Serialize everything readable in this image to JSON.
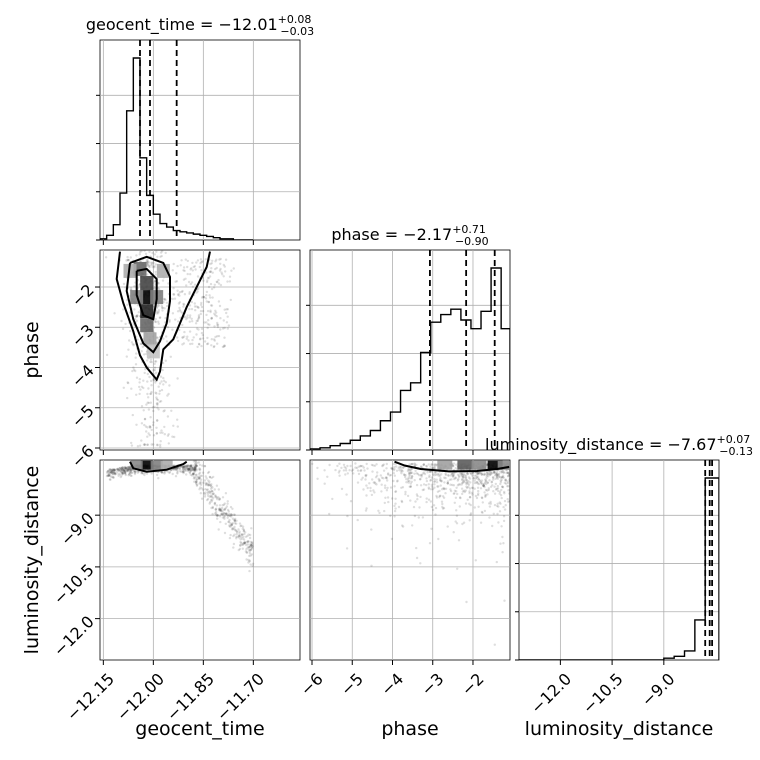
{
  "chart_data": {
    "type": "corner",
    "parameters": [
      "geocent_time",
      "phase",
      "luminosity_distance"
    ],
    "axis_labels": {
      "geocent_time": "geocent_time",
      "phase": "phase",
      "luminosity_distance": "luminosity_distance"
    },
    "ranges": {
      "geocent_time": [
        -12.16,
        -11.56
      ],
      "phase": [
        -6.05,
        -1.08
      ],
      "luminosity_distance": [
        -13.2,
        -7.4
      ]
    },
    "ticks": {
      "geocent_time": [
        {
          "value": -12.15,
          "label": "−12.15"
        },
        {
          "value": -12.0,
          "label": "−12.00"
        },
        {
          "value": -11.85,
          "label": "−11.85"
        },
        {
          "value": -11.7,
          "label": "−11.70"
        }
      ],
      "phase": [
        {
          "value": -6,
          "label": "−6"
        },
        {
          "value": -5,
          "label": "−5"
        },
        {
          "value": -4,
          "label": "−4"
        },
        {
          "value": -3,
          "label": "−3"
        },
        {
          "value": -2,
          "label": "−2"
        }
      ],
      "luminosity_distance": [
        {
          "value": -12.0,
          "label": "−12.0"
        },
        {
          "value": -10.5,
          "label": "−10.5"
        },
        {
          "value": -9.0,
          "label": "−9.0"
        }
      ]
    },
    "titles": {
      "geocent_time": {
        "main": "geocent_time = −12.01",
        "plus": "+0.08",
        "minus": "−0.03"
      },
      "phase": {
        "main": "phase = −2.17",
        "plus": "+0.71",
        "minus": "−0.90"
      },
      "luminosity_distance": {
        "main": "luminosity_distance = −7.67",
        "plus": "+0.07",
        "minus": "−0.13"
      }
    },
    "quantiles": {
      "geocent_time": [
        -12.04,
        -12.01,
        -11.93
      ],
      "phase": [
        -3.07,
        -2.17,
        -1.46
      ],
      "luminosity_distance": [
        -7.8,
        -7.67,
        -7.6
      ]
    },
    "histograms": {
      "geocent_time": {
        "edges": [
          -12.16,
          -12.14,
          -12.12,
          -12.1,
          -12.08,
          -12.06,
          -12.04,
          -12.02,
          -12.0,
          -11.98,
          -11.96,
          -11.94,
          -11.92,
          -11.9,
          -11.88,
          -11.86,
          -11.84,
          -11.82,
          -11.8,
          -11.78,
          -11.76,
          -11.74,
          -11.72,
          -11.7
        ],
        "counts": [
          1,
          4,
          13,
          40,
          110,
          155,
          70,
          38,
          22,
          14,
          11,
          8,
          7,
          6,
          5,
          4,
          3,
          2,
          1,
          1,
          0,
          0,
          0
        ]
      },
      "phase": {
        "edges": [
          -6.05,
          -5.8,
          -5.55,
          -5.3,
          -5.05,
          -4.8,
          -4.55,
          -4.3,
          -4.05,
          -3.8,
          -3.55,
          -3.3,
          -3.05,
          -2.8,
          -2.55,
          -2.3,
          -2.05,
          -1.8,
          -1.55,
          -1.3,
          -1.08
        ],
        "counts": [
          1,
          2,
          4,
          6,
          9,
          13,
          18,
          27,
          35,
          55,
          62,
          90,
          118,
          125,
          130,
          120,
          112,
          128,
          168,
          112
        ]
      },
      "luminosity_distance": {
        "edges": [
          -13.2,
          -12.9,
          -12.6,
          -12.3,
          -12.0,
          -11.7,
          -11.4,
          -11.1,
          -10.8,
          -10.5,
          -10.2,
          -9.9,
          -9.6,
          -9.3,
          -9.0,
          -8.7,
          -8.4,
          -8.1,
          -7.8,
          -7.6,
          -7.4
        ],
        "counts": [
          0,
          0,
          0,
          0,
          0,
          0,
          0,
          0,
          0,
          0,
          0,
          0,
          0,
          0,
          1,
          2,
          5,
          22,
          100,
          100
        ]
      }
    },
    "contours": {
      "phase_vs_geocent_time": [
        [
          [
            -12.1,
            -1.12
          ],
          [
            -12.11,
            -1.8
          ],
          [
            -12.09,
            -2.4
          ],
          [
            -12.06,
            -3.1
          ],
          [
            -12.04,
            -3.7
          ],
          [
            -12.02,
            -4.0
          ],
          [
            -11.99,
            -4.3
          ],
          [
            -11.98,
            -4.1
          ],
          [
            -11.97,
            -3.55
          ],
          [
            -11.94,
            -3.3
          ],
          [
            -11.92,
            -2.9
          ],
          [
            -11.9,
            -2.5
          ],
          [
            -11.87,
            -2.0
          ],
          [
            -11.84,
            -1.5
          ],
          [
            -11.83,
            -1.12
          ]
        ],
        [
          [
            -12.07,
            -1.4
          ],
          [
            -12.08,
            -2.1
          ],
          [
            -12.06,
            -2.8
          ],
          [
            -12.03,
            -3.4
          ],
          [
            -12.0,
            -3.62
          ],
          [
            -11.98,
            -3.35
          ],
          [
            -11.96,
            -2.9
          ],
          [
            -11.95,
            -2.35
          ],
          [
            -11.95,
            -1.75
          ],
          [
            -11.97,
            -1.4
          ],
          [
            -12.02,
            -1.25
          ],
          [
            -12.07,
            -1.4
          ]
        ],
        [
          [
            -12.05,
            -1.6
          ],
          [
            -12.05,
            -2.2
          ],
          [
            -12.03,
            -2.7
          ],
          [
            -12.0,
            -2.8
          ],
          [
            -11.99,
            -2.3
          ],
          [
            -11.99,
            -1.8
          ],
          [
            -12.02,
            -1.55
          ],
          [
            -12.05,
            -1.6
          ]
        ]
      ],
      "luminosity_distance_vs_geocent_time": [
        [
          [
            -12.07,
            -7.45
          ],
          [
            -12.06,
            -7.64
          ],
          [
            -12.02,
            -7.74
          ],
          [
            -11.96,
            -7.68
          ],
          [
            -11.91,
            -7.52
          ],
          [
            -11.9,
            -7.45
          ]
        ]
      ],
      "luminosity_distance_vs_phase": [
        [
          [
            -3.95,
            -7.45
          ],
          [
            -3.7,
            -7.56
          ],
          [
            -3.3,
            -7.66
          ],
          [
            -2.6,
            -7.73
          ],
          [
            -1.9,
            -7.72
          ],
          [
            -1.4,
            -7.66
          ],
          [
            -1.1,
            -7.6
          ]
        ]
      ]
    },
    "densities": {
      "phase_vs_geocent_time": [
        {
          "x": -12.02,
          "y": -2.25,
          "level": 1.0
        },
        {
          "x": -12.02,
          "y": -2.6,
          "level": 0.85
        },
        {
          "x": -12.02,
          "y": -1.9,
          "level": 0.7
        },
        {
          "x": -12.04,
          "y": -1.55,
          "level": 0.55
        },
        {
          "x": -12.02,
          "y": -2.95,
          "level": 0.55
        },
        {
          "x": -12.05,
          "y": -2.25,
          "level": 0.45
        },
        {
          "x": -11.99,
          "y": -2.25,
          "level": 0.45
        },
        {
          "x": -12.01,
          "y": -3.3,
          "level": 0.3
        },
        {
          "x": -12.07,
          "y": -1.6,
          "level": 0.25
        },
        {
          "x": -11.97,
          "y": -1.6,
          "level": 0.25
        },
        {
          "x": -12.0,
          "y": -3.6,
          "level": 0.15
        }
      ],
      "luminosity_distance_vs_geocent_time": [
        {
          "x": -12.02,
          "y": -7.55,
          "level": 1.0
        },
        {
          "x": -11.99,
          "y": -7.55,
          "level": 0.45
        },
        {
          "x": -12.05,
          "y": -7.55,
          "level": 0.4
        },
        {
          "x": -11.96,
          "y": -7.55,
          "level": 0.25
        }
      ],
      "luminosity_distance_vs_phase": [
        {
          "x": -1.45,
          "y": -7.55,
          "level": 1.0
        },
        {
          "x": -2.2,
          "y": -7.55,
          "level": 0.6
        },
        {
          "x": -1.85,
          "y": -7.55,
          "level": 0.4
        },
        {
          "x": -2.7,
          "y": -7.55,
          "level": 0.3
        },
        {
          "x": -1.2,
          "y": -7.55,
          "level": 0.4
        }
      ]
    }
  }
}
